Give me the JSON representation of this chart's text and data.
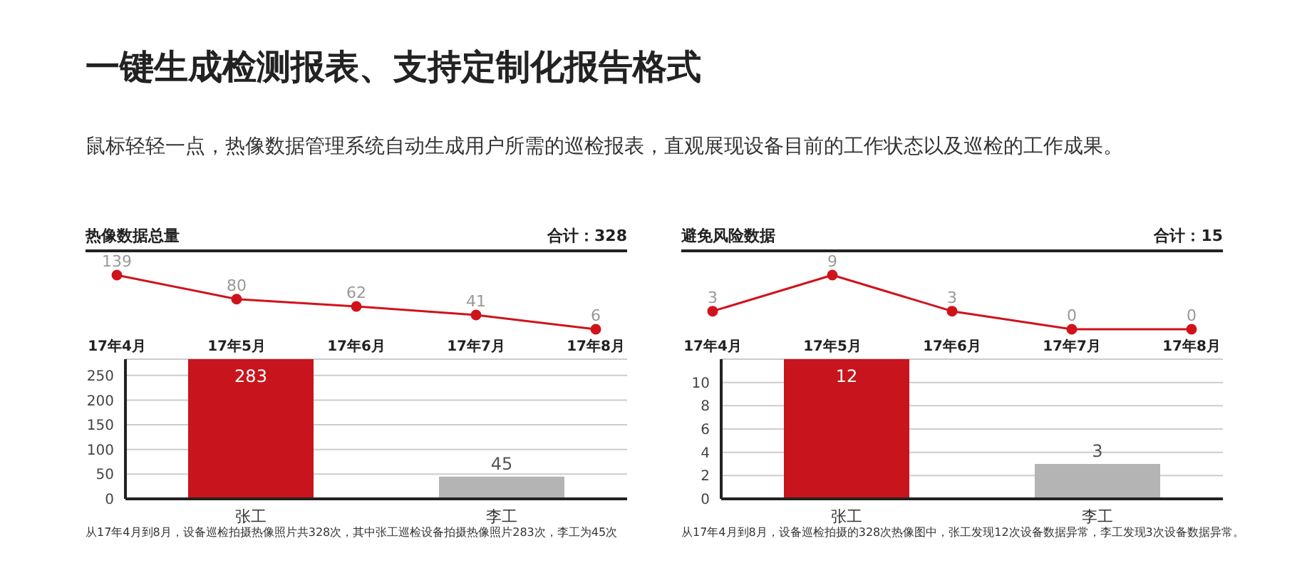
{
  "chart_data": [
    {
      "type": "other",
      "title": "一键生成检测报表、支持定制化报告格式",
      "subtitle": "鼠标轻轻一点，热像数据管理系统自动生成用户所需的巡检报表，直观展现设备目前的工作状态以及巡检的工作成果。"
    },
    {
      "type": "line",
      "title": "热像数据总量",
      "annotations": [
        "合计：328"
      ],
      "categories": [
        "17年4月",
        "17年5月",
        "17年6月",
        "17年7月",
        "17年8月"
      ],
      "series": [
        {
          "color": "#d0131b",
          "values": [
            139,
            80,
            62,
            41,
            6
          ]
        }
      ],
      "data_labels": true,
      "marker": "circle",
      "tick_labels": "x"
    },
    {
      "type": "bar",
      "categories": [
        "张工",
        "李工"
      ],
      "values": [
        283,
        45
      ],
      "colors": [
        "#c8141c",
        "#b4b4b4"
      ],
      "ylim": [
        0,
        283
      ],
      "yticks": [
        0,
        50,
        100,
        150,
        200,
        250
      ],
      "grid": "y",
      "data_labels": true,
      "annotations": [
        "从17年4月到8月，设备巡检拍摄热像照片共328次，其中张工巡检设备拍摄热像照片283次，李工为45次"
      ]
    },
    {
      "type": "line",
      "title": "避免风险数据",
      "annotations": [
        "合计：15"
      ],
      "categories": [
        "17年4月",
        "17年5月",
        "17年6月",
        "17年7月",
        "17年8月"
      ],
      "series": [
        {
          "color": "#d0131b",
          "values": [
            3,
            9,
            3,
            0,
            0
          ]
        }
      ],
      "data_labels": true,
      "marker": "circle",
      "tick_labels": "x"
    },
    {
      "type": "bar",
      "categories": [
        "张工",
        "李工"
      ],
      "values": [
        12,
        3
      ],
      "colors": [
        "#c8141c",
        "#b4b4b4"
      ],
      "ylim": [
        0,
        12
      ],
      "yticks": [
        0,
        2,
        4,
        6,
        8,
        10
      ],
      "grid": "y",
      "data_labels": true,
      "annotations": [
        "从17年4月到8月，设备巡检拍摄的328次热像图中，张工发现12次设备数据异常，李工发现3次设备数据异常。"
      ]
    }
  ]
}
